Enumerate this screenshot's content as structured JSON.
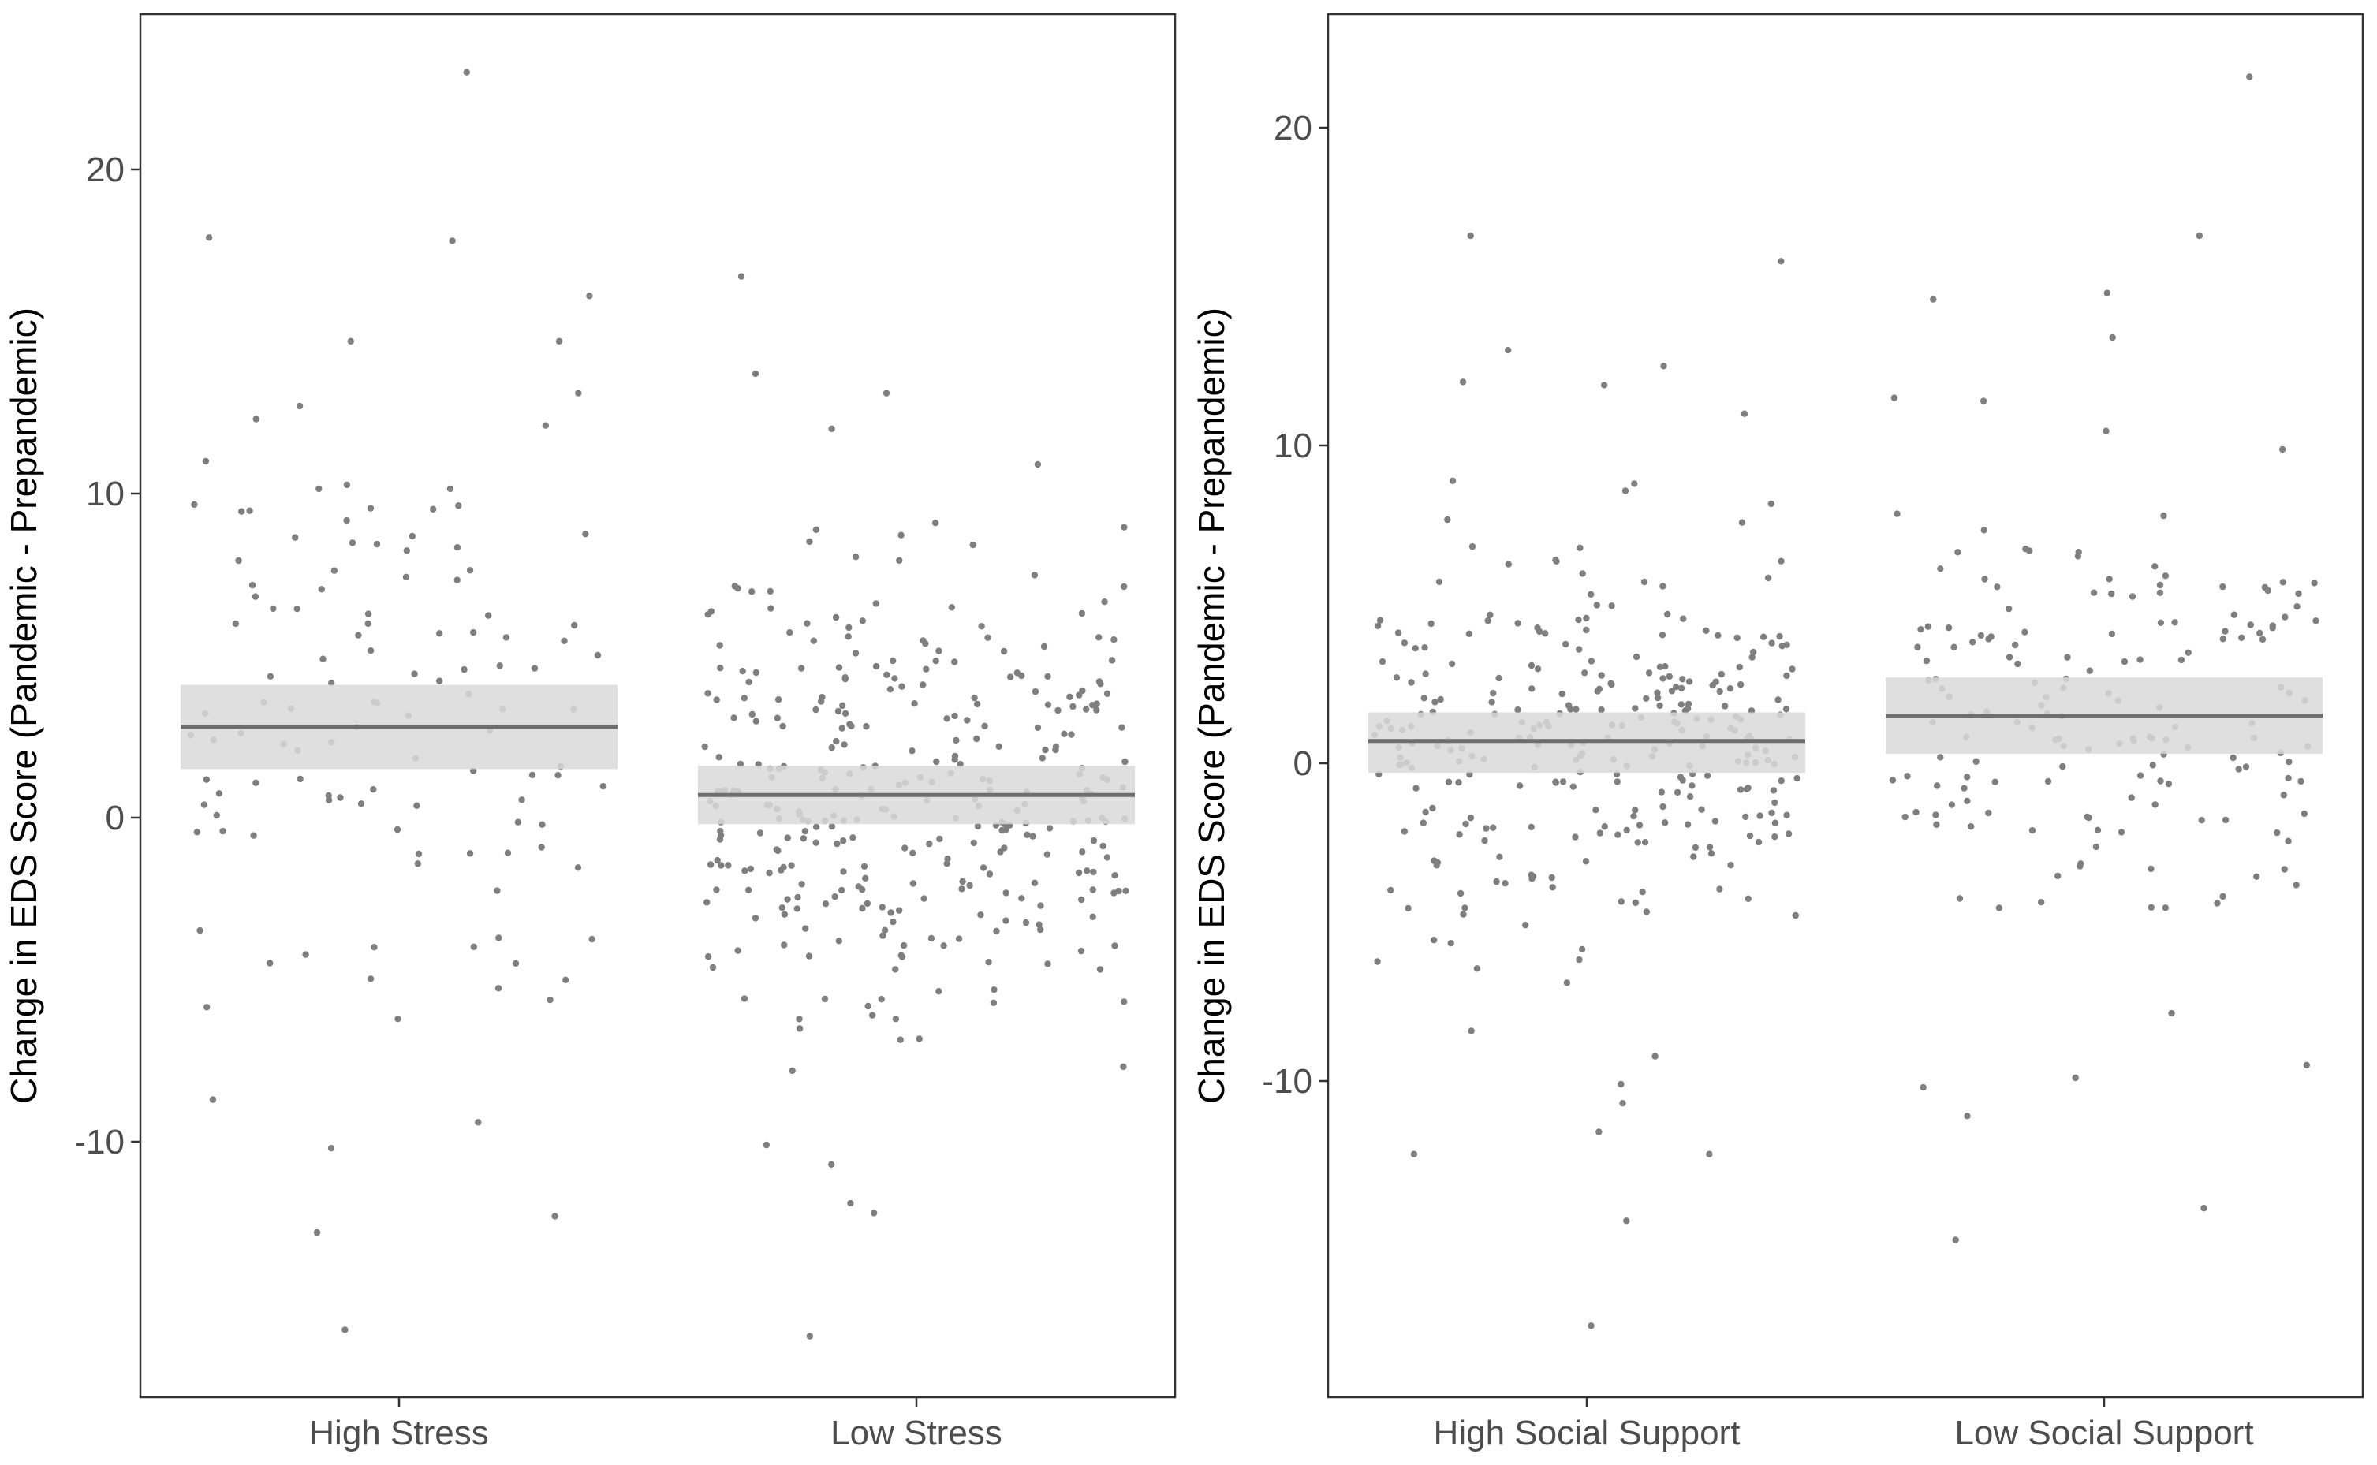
{
  "chart_data": [
    {
      "type": "scatter",
      "title": "",
      "xlabel": "",
      "ylabel": "Change in EDS Score (Pandemic - Prepandemic)",
      "ylim": [
        -17.5,
        25
      ],
      "yticks": [
        20,
        10,
        0,
        -10
      ],
      "grid": false,
      "categories": [
        "High Stress",
        "Low Stress"
      ],
      "groups": [
        {
          "name": "High Stress",
          "mean": 2.8,
          "ci_lower": 1.5,
          "ci_upper": 4.1,
          "n_points": 110
        },
        {
          "name": "Low Stress",
          "mean": 0.7,
          "ci_lower": -0.2,
          "ci_upper": 1.6,
          "n_points": 330
        }
      ],
      "points": [
        {
          "group": "High Stress",
          "y": 23.0
        },
        {
          "group": "High Stress",
          "y": 17.8
        },
        {
          "group": "High Stress",
          "y": 17.9
        },
        {
          "group": "High Stress",
          "y": 16.1
        },
        {
          "group": "High Stress",
          "y": 14.7
        },
        {
          "group": "High Stress",
          "y": 14.7
        },
        {
          "group": "High Stress",
          "y": 13.1
        },
        {
          "group": "High Stress",
          "y": 12.7
        },
        {
          "group": "High Stress",
          "y": 12.3
        },
        {
          "group": "High Stress",
          "y": 12.1
        },
        {
          "group": "High Stress",
          "y": 11.0
        },
        {
          "group": "Low Stress",
          "y": 16.7
        },
        {
          "group": "Low Stress",
          "y": 13.7
        },
        {
          "group": "Low Stress",
          "y": 13.1
        },
        {
          "group": "Low Stress",
          "y": 12.0
        },
        {
          "group": "Low Stress",
          "y": 10.9
        },
        {
          "group": "High Stress",
          "y": -15.8
        },
        {
          "group": "High Stress",
          "y": -12.8
        },
        {
          "group": "High Stress",
          "y": -12.3
        },
        {
          "group": "High Stress",
          "y": -10.2
        },
        {
          "group": "High Stress",
          "y": -9.4
        },
        {
          "group": "High Stress",
          "y": -8.7
        },
        {
          "group": "Low Stress",
          "y": -16.0
        },
        {
          "group": "Low Stress",
          "y": -12.2
        },
        {
          "group": "Low Stress",
          "y": -11.9
        },
        {
          "group": "Low Stress",
          "y": -10.7
        },
        {
          "group": "Low Stress",
          "y": -10.1
        }
      ]
    },
    {
      "type": "scatter",
      "title": "",
      "xlabel": "",
      "ylabel": "Change in EDS Score (Pandemic - Prepandemic)",
      "ylim": [
        -18.5,
        24
      ],
      "yticks": [
        20,
        10,
        0,
        -10
      ],
      "grid": false,
      "categories": [
        "High Social Support",
        "Low Social Support"
      ],
      "groups": [
        {
          "name": "High Social Support",
          "mean": 0.7,
          "ci_lower": -0.3,
          "ci_upper": 1.6,
          "n_points": 290
        },
        {
          "name": "Low Social Support",
          "mean": 1.5,
          "ci_lower": 0.3,
          "ci_upper": 2.7,
          "n_points": 160
        }
      ],
      "points": [
        {
          "group": "High Social Support",
          "y": 16.6
        },
        {
          "group": "High Social Support",
          "y": 15.8
        },
        {
          "group": "High Social Support",
          "y": 13.0
        },
        {
          "group": "High Social Support",
          "y": 12.5
        },
        {
          "group": "High Social Support",
          "y": 12.0
        },
        {
          "group": "High Social Support",
          "y": 11.9
        },
        {
          "group": "High Social Support",
          "y": 11.0
        },
        {
          "group": "Low Social Support",
          "y": 21.6
        },
        {
          "group": "Low Social Support",
          "y": 16.6
        },
        {
          "group": "Low Social Support",
          "y": 14.8
        },
        {
          "group": "Low Social Support",
          "y": 14.6
        },
        {
          "group": "Low Social Support",
          "y": 13.4
        },
        {
          "group": "Low Social Support",
          "y": 11.5
        },
        {
          "group": "Low Social Support",
          "y": 11.4
        },
        {
          "group": "High Social Support",
          "y": -17.7
        },
        {
          "group": "High Social Support",
          "y": -14.4
        },
        {
          "group": "High Social Support",
          "y": -12.3
        },
        {
          "group": "High Social Support",
          "y": -12.3
        },
        {
          "group": "High Social Support",
          "y": -11.6
        },
        {
          "group": "High Social Support",
          "y": -10.7
        },
        {
          "group": "High Social Support",
          "y": -10.1
        },
        {
          "group": "Low Social Support",
          "y": -15.0
        },
        {
          "group": "Low Social Support",
          "y": -14.0
        },
        {
          "group": "Low Social Support",
          "y": -11.1
        },
        {
          "group": "Low Social Support",
          "y": -10.2
        },
        {
          "group": "Low Social Support",
          "y": -9.9
        },
        {
          "group": "Low Social Support",
          "y": -9.5
        }
      ]
    }
  ],
  "colors": {
    "points": "#7f7f7f",
    "band": "#d9d9d9",
    "mean_line": "#6e6e6e",
    "border": "#333333",
    "tick_text": "#4d4d4d"
  }
}
